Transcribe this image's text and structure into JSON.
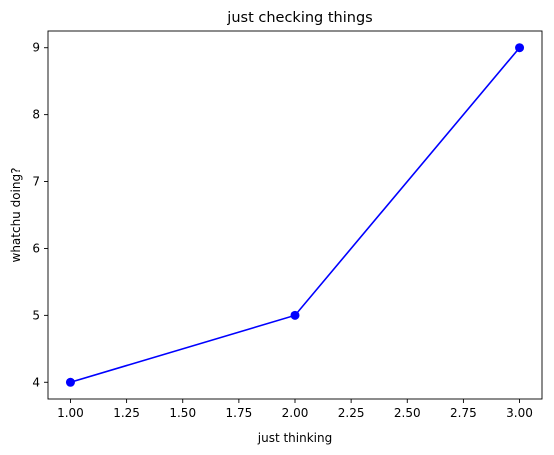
{
  "chart_data": {
    "type": "line",
    "title": "just checking things",
    "xlabel": "just thinking",
    "ylabel": "whatchu doing?",
    "x": [
      1,
      2,
      3
    ],
    "series": [
      {
        "values": [
          4,
          5,
          9
        ],
        "color": "#0000ff",
        "marker": "circle"
      }
    ],
    "xlim": [
      0.9,
      3.1
    ],
    "ylim": [
      3.75,
      9.25
    ],
    "xticks": [
      "1.00",
      "1.25",
      "1.50",
      "1.75",
      "2.00",
      "2.25",
      "2.50",
      "2.75",
      "3.00"
    ],
    "yticks": [
      "4",
      "5",
      "6",
      "7",
      "8",
      "9"
    ],
    "grid": false,
    "legend": "none"
  }
}
